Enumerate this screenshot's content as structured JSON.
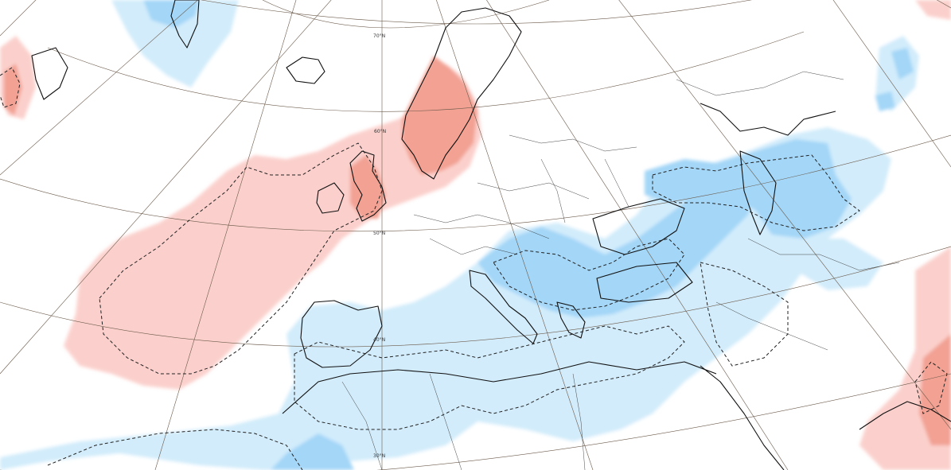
{
  "map": {
    "colors": {
      "warm_light": "#fbd0cc",
      "warm_strong": "#f2a193",
      "cold_light": "#d2ecfb",
      "cold_strong": "#a3d6f7",
      "coastline": "#111111",
      "graticule": "#6b5a4a"
    },
    "latitude_labels": [
      "70°N",
      "60°N",
      "50°N",
      "40°N",
      "30°N"
    ]
  }
}
